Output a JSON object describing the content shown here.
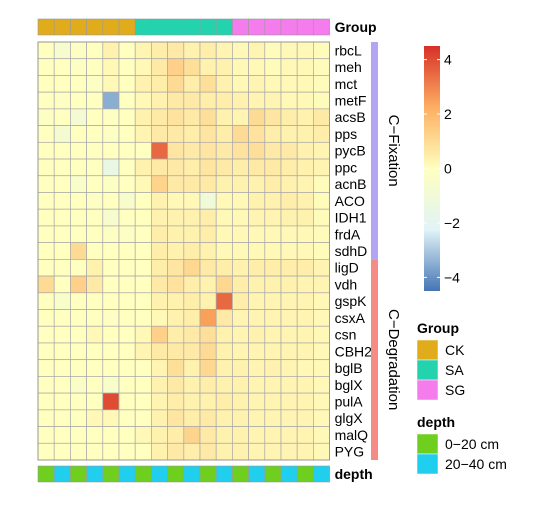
{
  "chart_data": {
    "type": "heatmap",
    "rows": [
      "rbcL",
      "meh",
      "mct",
      "metF",
      "acsB",
      "pps",
      "pycB",
      "ppc",
      "acnB",
      "ACO",
      "IDH1",
      "frdA",
      "sdhD",
      "ligD",
      "vdh",
      "gspK",
      "csxA",
      "csn",
      "CBH2",
      "bglB",
      "bglX",
      "pulA",
      "glgX",
      "malQ",
      "PYG"
    ],
    "n_columns": 18,
    "values": [
      [
        0,
        -0.6,
        -0.2,
        0,
        0.4,
        0,
        0.3,
        0.5,
        0.6,
        0.4,
        0.5,
        0.3,
        0.2,
        0.3,
        0.1,
        0.2,
        0.2,
        0.1
      ],
      [
        0,
        0,
        -0.2,
        0,
        0.2,
        0,
        0.2,
        0.6,
        1.3,
        0.9,
        0.4,
        0.4,
        0.2,
        0.2,
        0.1,
        0.2,
        0.2,
        0.1
      ],
      [
        0,
        0,
        0,
        -0.2,
        0.2,
        0,
        0.4,
        0.5,
        1.0,
        0.5,
        0.9,
        0.4,
        0.2,
        0.3,
        0.2,
        0.2,
        0.2,
        0.1
      ],
      [
        0,
        -0.2,
        0,
        0,
        -3.5,
        0,
        0.2,
        0.4,
        0.6,
        0.6,
        0.5,
        0.5,
        0.4,
        0.3,
        0.3,
        0.2,
        0.2,
        0.1
      ],
      [
        -0.2,
        0,
        -0.8,
        0,
        -0.2,
        0,
        0.4,
        0.6,
        0.8,
        0.6,
        0.9,
        0.4,
        0.3,
        1.0,
        0.7,
        0.5,
        0.4,
        0.6
      ],
      [
        0,
        -0.7,
        0,
        0,
        -0.2,
        0,
        0.3,
        0.6,
        0.6,
        0.5,
        0.7,
        0.5,
        1.0,
        0.8,
        0.5,
        0.4,
        0.4,
        0.5
      ],
      [
        0,
        0,
        0,
        0,
        0,
        0,
        0,
        3.5,
        0.7,
        0.6,
        0.7,
        0.6,
        0.8,
        0.9,
        0.6,
        0.6,
        0.4,
        0.3
      ],
      [
        0,
        0,
        0,
        0,
        -1.5,
        0,
        0.4,
        0.6,
        0.6,
        0.5,
        0.7,
        0.6,
        0.5,
        0.6,
        0.6,
        0.5,
        0.4,
        0.3
      ],
      [
        0,
        0,
        -0.4,
        0,
        -0.2,
        0,
        0.2,
        1.2,
        0.6,
        0.6,
        0.6,
        0.4,
        0.4,
        0.4,
        0.5,
        0.4,
        0.3,
        0.1
      ],
      [
        0,
        0,
        0,
        -0.2,
        0,
        -0.5,
        0,
        0.4,
        0.2,
        0.2,
        -1.0,
        0.2,
        0.2,
        0.4,
        0.4,
        0.5,
        0.4,
        0.1
      ],
      [
        0,
        0,
        0,
        0,
        -0.6,
        0,
        0,
        0.4,
        0.4,
        0.4,
        0.5,
        0.2,
        0.2,
        0.3,
        0.3,
        0.4,
        0.4,
        0.1
      ],
      [
        0,
        0,
        0,
        0,
        -0.2,
        -0.2,
        0,
        0.5,
        0.4,
        0.4,
        0.5,
        0.2,
        0.2,
        0.2,
        0.2,
        0.2,
        0.2,
        0.1
      ],
      [
        0,
        0,
        1.0,
        0,
        0,
        0,
        0,
        0.5,
        0.4,
        0.5,
        0.4,
        0.2,
        0.2,
        0.2,
        0.2,
        0.2,
        0.2,
        0.1
      ],
      [
        0,
        0,
        0,
        0.4,
        0,
        0,
        0,
        0.5,
        0.7,
        1.1,
        0.6,
        0.5,
        0.4,
        0.5,
        0.5,
        0.5,
        0.5,
        0.3
      ],
      [
        1.0,
        0,
        1.3,
        0.6,
        0,
        0,
        0,
        0.6,
        0.8,
        0.5,
        0.4,
        1.1,
        0.5,
        0.4,
        0.4,
        0.4,
        0.3,
        0.3
      ],
      [
        0,
        -0.4,
        0,
        0,
        0,
        0,
        0,
        0.4,
        0.4,
        0.5,
        0.4,
        3.5,
        0.5,
        0.3,
        0.3,
        0.3,
        0.3,
        0.2
      ],
      [
        0,
        0,
        0,
        0,
        -0.2,
        0,
        0,
        0.2,
        0.4,
        0.5,
        2.5,
        0.6,
        0.3,
        0.3,
        0.3,
        0.3,
        0.3,
        0.2
      ],
      [
        0,
        0,
        0,
        0.2,
        0,
        0,
        0.2,
        1.3,
        0.5,
        0.6,
        0.9,
        0.4,
        0.3,
        0.4,
        0.3,
        0.3,
        0.3,
        0.2
      ],
      [
        0,
        0,
        0,
        0,
        0,
        0,
        0.3,
        0.6,
        0.6,
        0.6,
        1.0,
        0.4,
        0.3,
        0.3,
        0.3,
        0.3,
        0.3,
        0.2
      ],
      [
        0,
        0,
        0,
        0,
        0,
        0,
        0,
        0.3,
        0.9,
        0.4,
        1.1,
        0.4,
        0.4,
        0.3,
        0.4,
        0.3,
        0.2,
        0.2
      ],
      [
        0,
        0,
        -0.3,
        0,
        -0.4,
        0,
        0,
        0.4,
        0.6,
        0.4,
        0.5,
        0.4,
        0.4,
        0.3,
        0.3,
        0.3,
        0.3,
        0.2
      ],
      [
        0,
        0,
        0,
        0,
        4.0,
        0,
        0,
        0.3,
        0.5,
        0.4,
        0.4,
        0.5,
        0.4,
        0.3,
        0.3,
        0.3,
        0.3,
        0.2
      ],
      [
        0,
        0,
        0,
        0.2,
        0.2,
        0,
        0,
        0.4,
        0.7,
        0.5,
        0.6,
        0.4,
        0.4,
        0.3,
        0.3,
        0.3,
        0.3,
        0.2
      ],
      [
        0,
        0,
        0,
        0,
        0,
        0,
        0.2,
        0.4,
        0.5,
        1.2,
        0.6,
        0.4,
        0.4,
        0.3,
        0.3,
        0.3,
        0.3,
        0.2
      ],
      [
        0,
        0,
        0,
        0,
        0,
        0,
        0,
        0.4,
        0.6,
        0.5,
        0.6,
        0.4,
        0.4,
        0.3,
        0.3,
        0.3,
        0.3,
        0.2
      ]
    ],
    "color_scale": {
      "min": -4.5,
      "max": 4.5,
      "ticks": [
        4,
        2,
        0,
        -2,
        -4
      ],
      "colors": [
        "#4575b4",
        "#e0f3f8",
        "#ffffbf",
        "#fdae61",
        "#d73027"
      ]
    },
    "column_annotations": {
      "group": {
        "label": "Group",
        "values": [
          "CK",
          "CK",
          "CK",
          "CK",
          "CK",
          "CK",
          "SA",
          "SA",
          "SA",
          "SA",
          "SA",
          "SA",
          "SG",
          "SG",
          "SG",
          "SG",
          "SG",
          "SG"
        ]
      },
      "depth": {
        "label": "depth",
        "values": [
          "0−20 cm",
          "20−40 cm",
          "0−20 cm",
          "20−40 cm",
          "0−20 cm",
          "20−40 cm",
          "0−20 cm",
          "20−40 cm",
          "0−20 cm",
          "20−40 cm",
          "0−20 cm",
          "20−40 cm",
          "0−20 cm",
          "20−40 cm",
          "0−20 cm",
          "20−40 cm",
          "0−20 cm",
          "20−40 cm"
        ]
      }
    },
    "row_blocks": [
      {
        "label": "C−Fixation",
        "start": 0,
        "end": 12,
        "color": "#b3a5f2"
      },
      {
        "label": "C−Degradation",
        "start": 13,
        "end": 24,
        "color": "#f68b85"
      }
    ],
    "legends": {
      "group": {
        "title": "Group",
        "items": [
          {
            "label": "CK",
            "color": "#e0ac1c"
          },
          {
            "label": "SA",
            "color": "#23d3ad"
          },
          {
            "label": "SG",
            "color": "#f47ced"
          }
        ]
      },
      "depth": {
        "title": "depth",
        "items": [
          {
            "label": "0−20 cm",
            "color": "#6fcf1f"
          },
          {
            "label": "20−40 cm",
            "color": "#20cfee"
          }
        ]
      }
    },
    "grid": true
  }
}
